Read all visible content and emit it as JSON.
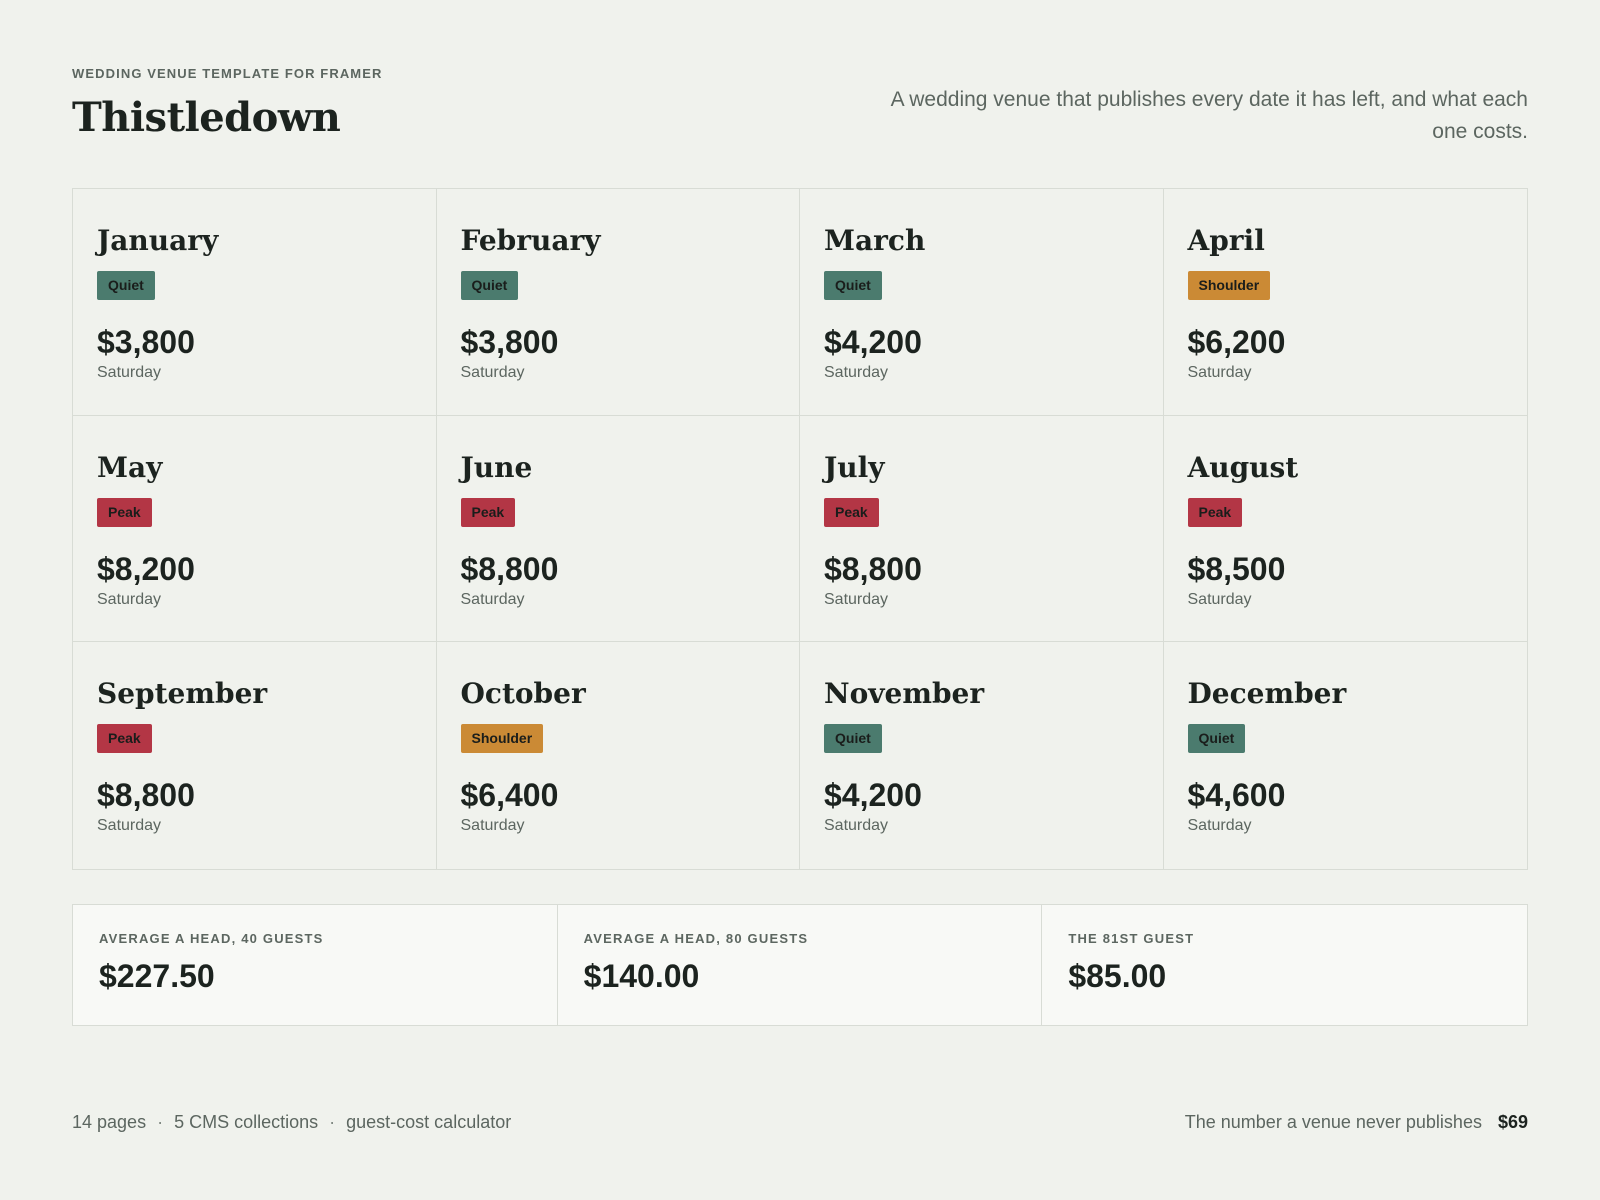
{
  "header": {
    "eyebrow": "WEDDING VENUE TEMPLATE FOR FRAMER",
    "title": "Thistledown",
    "tagline": "A wedding venue that publishes every date it has left, and what each one costs."
  },
  "months": [
    {
      "name": "January",
      "season": "Quiet",
      "price": "$3,800",
      "day": "Saturday"
    },
    {
      "name": "February",
      "season": "Quiet",
      "price": "$3,800",
      "day": "Saturday"
    },
    {
      "name": "March",
      "season": "Quiet",
      "price": "$4,200",
      "day": "Saturday"
    },
    {
      "name": "April",
      "season": "Shoulder",
      "price": "$6,200",
      "day": "Saturday"
    },
    {
      "name": "May",
      "season": "Peak",
      "price": "$8,200",
      "day": "Saturday"
    },
    {
      "name": "June",
      "season": "Peak",
      "price": "$8,800",
      "day": "Saturday"
    },
    {
      "name": "July",
      "season": "Peak",
      "price": "$8,800",
      "day": "Saturday"
    },
    {
      "name": "August",
      "season": "Peak",
      "price": "$8,500",
      "day": "Saturday"
    },
    {
      "name": "September",
      "season": "Peak",
      "price": "$8,800",
      "day": "Saturday"
    },
    {
      "name": "October",
      "season": "Shoulder",
      "price": "$6,400",
      "day": "Saturday"
    },
    {
      "name": "November",
      "season": "Quiet",
      "price": "$4,200",
      "day": "Saturday"
    },
    {
      "name": "December",
      "season": "Quiet",
      "price": "$4,600",
      "day": "Saturday"
    }
  ],
  "season_colors": {
    "Quiet": "#4b7b6e",
    "Shoulder": "#cb8a35",
    "Peak": "#b33645"
  },
  "stats": [
    {
      "label": "AVERAGE A HEAD, 40 GUESTS",
      "value": "$227.50"
    },
    {
      "label": "AVERAGE A HEAD, 80 GUESTS",
      "value": "$140.00"
    },
    {
      "label": "THE 81ST GUEST",
      "value": "$85.00"
    }
  ],
  "footer": {
    "features": [
      "14 pages",
      "5 CMS collections",
      "guest-cost calculator"
    ],
    "separator": "·",
    "pitch": "The number a venue never publishes",
    "price": "$69"
  }
}
